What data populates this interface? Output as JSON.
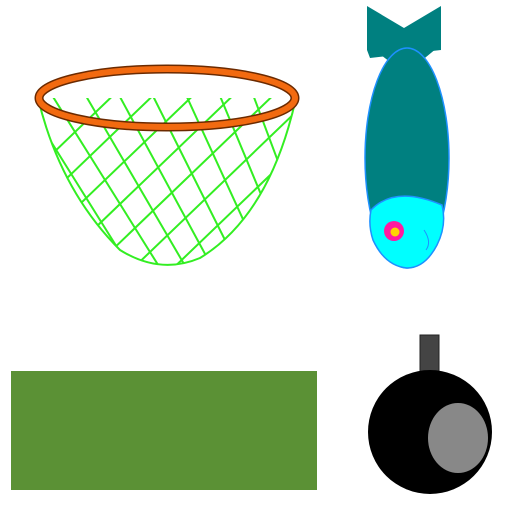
{
  "scene": {
    "background": "#ffffff",
    "items": [
      {
        "name": "fishing-net",
        "icon": "net-icon",
        "rim_color": "#f26a10",
        "rim_outline": "#6b2a00",
        "mesh_color": "#33ee22"
      },
      {
        "name": "fish",
        "icon": "fish-icon",
        "body_color": "#008080",
        "belly_color": "#00ffff",
        "outline_color": "#1e90ff",
        "eye_outer": "#ff1aa0",
        "eye_inner": "#ffd400"
      },
      {
        "name": "green-block",
        "icon": "rectangle-icon",
        "color": "#5b9135"
      },
      {
        "name": "bomb",
        "icon": "bomb-icon",
        "body_color": "#000000",
        "highlight_color": "#888888",
        "fuse_color": "#444444"
      }
    ]
  }
}
